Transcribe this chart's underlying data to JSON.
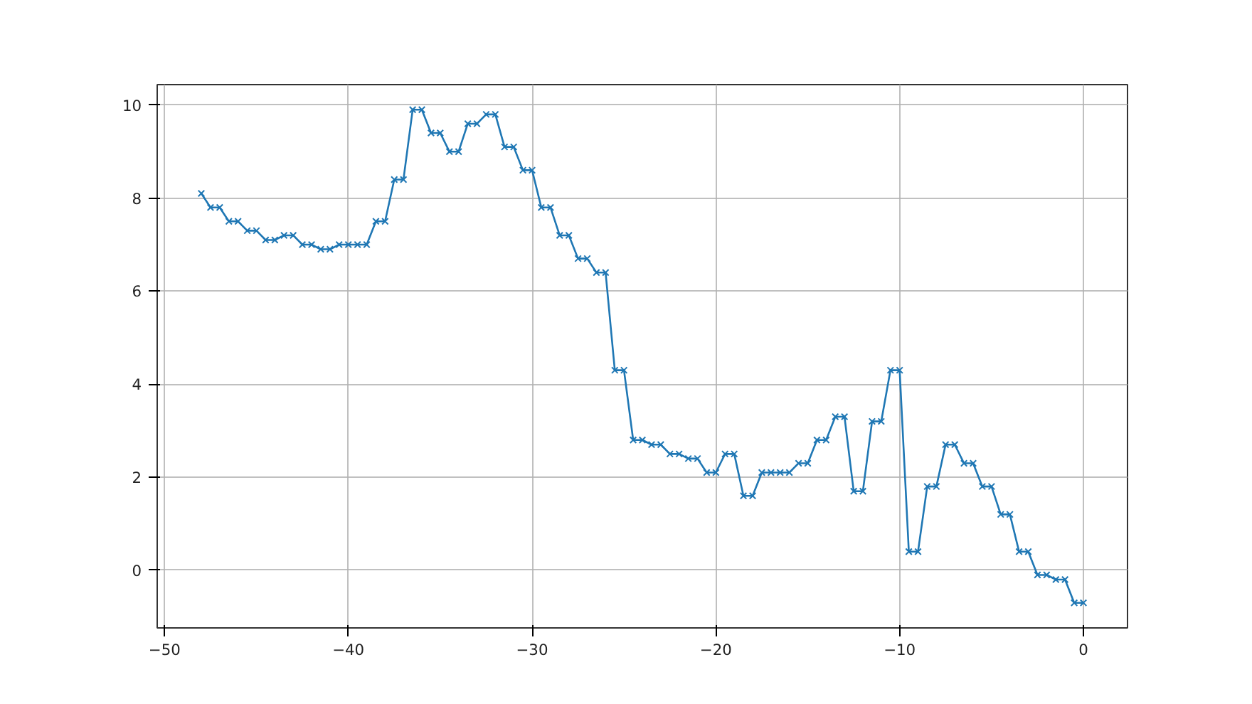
{
  "chart_data": {
    "type": "line",
    "x": [
      -48,
      -47.5,
      -47,
      -46.5,
      -46,
      -45.5,
      -45,
      -44.5,
      -44,
      -43.5,
      -43,
      -42.5,
      -42,
      -41.5,
      -41,
      -40.5,
      -40,
      -39.5,
      -39,
      -38.5,
      -38,
      -37.5,
      -37,
      -36.5,
      -36,
      -35.5,
      -35,
      -34.5,
      -34,
      -33.5,
      -33,
      -32.5,
      -32,
      -31.5,
      -31,
      -30.5,
      -30,
      -29.5,
      -29,
      -28.5,
      -28,
      -27.5,
      -27,
      -26.5,
      -26,
      -25.5,
      -25,
      -24.5,
      -24,
      -23.5,
      -23,
      -22.5,
      -22,
      -21.5,
      -21,
      -20.5,
      -20,
      -19.5,
      -19,
      -18.5,
      -18,
      -17.5,
      -17,
      -16.5,
      -16,
      -15.5,
      -15,
      -14.5,
      -14,
      -13.5,
      -13,
      -12.5,
      -12,
      -11.5,
      -11,
      -10.5,
      -10,
      -9.5,
      -9,
      -8.5,
      -8,
      -7.5,
      -7,
      -6.5,
      -6,
      -5.5,
      -5,
      -4.5,
      -4,
      -3.5,
      -3,
      -2.5,
      -2,
      -1.5,
      -1,
      -0.5,
      0
    ],
    "series": [
      {
        "color": "#1f77b4",
        "values": [
          8.1,
          7.8,
          7.8,
          7.5,
          7.5,
          7.3,
          7.3,
          7.1,
          7.1,
          7.2,
          7.2,
          7.0,
          7.0,
          6.9,
          6.9,
          7.0,
          7.0,
          7.0,
          7.0,
          7.5,
          7.5,
          8.4,
          8.4,
          9.9,
          9.9,
          9.4,
          9.4,
          9.0,
          9.0,
          9.6,
          9.6,
          9.8,
          9.8,
          9.1,
          9.1,
          8.6,
          8.6,
          7.8,
          7.8,
          7.2,
          7.2,
          6.7,
          6.7,
          6.4,
          6.4,
          4.3,
          4.3,
          2.8,
          2.8,
          2.7,
          2.7,
          2.5,
          2.5,
          2.4,
          2.4,
          2.1,
          2.1,
          2.5,
          2.5,
          1.6,
          1.6,
          2.1,
          2.1,
          2.1,
          2.1,
          2.3,
          2.3,
          2.8,
          2.8,
          3.3,
          3.3,
          1.7,
          1.7,
          3.2,
          3.2,
          4.3,
          4.3,
          0.4,
          0.4,
          1.8,
          1.8,
          2.7,
          2.7,
          2.3,
          2.3,
          1.8,
          1.8,
          1.2,
          1.2,
          0.4,
          0.4,
          -0.1,
          -0.1,
          -0.2,
          -0.2,
          -0.7,
          -0.7
        ]
      }
    ],
    "xlim": [
      -50.4,
      2.4
    ],
    "ylim": [
      -1.24,
      10.44
    ],
    "xticks": [
      {
        "value": -50,
        "label": "−50"
      },
      {
        "value": -40,
        "label": "−40"
      },
      {
        "value": -30,
        "label": "−30"
      },
      {
        "value": -20,
        "label": "−20"
      },
      {
        "value": -10,
        "label": "−10"
      },
      0
    ],
    "yticks": [
      0,
      2,
      4,
      6,
      8,
      10
    ],
    "grid": true,
    "marker": "cross",
    "line_style": "solid"
  }
}
